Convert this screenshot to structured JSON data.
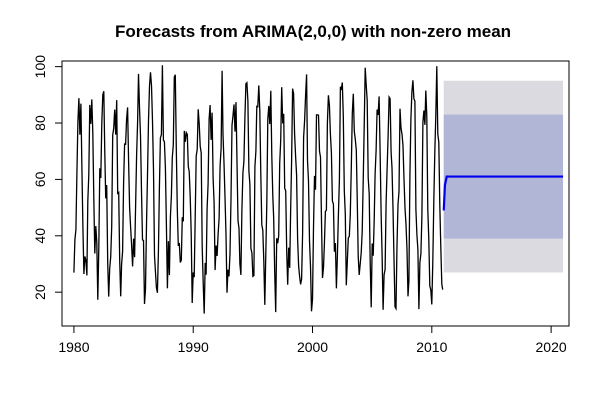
{
  "chart_data": {
    "type": "line",
    "title": "Forecasts from ARIMA(2,0,0) with non-zero mean",
    "xlabel": "",
    "ylabel": "",
    "xlim": [
      1979,
      2021.5
    ],
    "ylim": [
      8,
      102
    ],
    "x_ticks": [
      1980,
      1990,
      2000,
      2010,
      2020
    ],
    "y_ticks": [
      20,
      40,
      60,
      80,
      100
    ],
    "grid": false,
    "legend": "none",
    "historical": {
      "start": 1980,
      "end": 2011,
      "frequency": 12,
      "approx_range": [
        9,
        101
      ],
      "color": "#000000"
    },
    "forecast": {
      "start": 2011,
      "end": 2021,
      "first_value": 49,
      "mean": 61,
      "pi80": {
        "lower": 39,
        "upper": 83,
        "color": "#b1b5d6"
      },
      "pi95": {
        "lower": 27,
        "upper": 95,
        "color": "#dadae0"
      },
      "line_color": "#0000ee"
    }
  }
}
